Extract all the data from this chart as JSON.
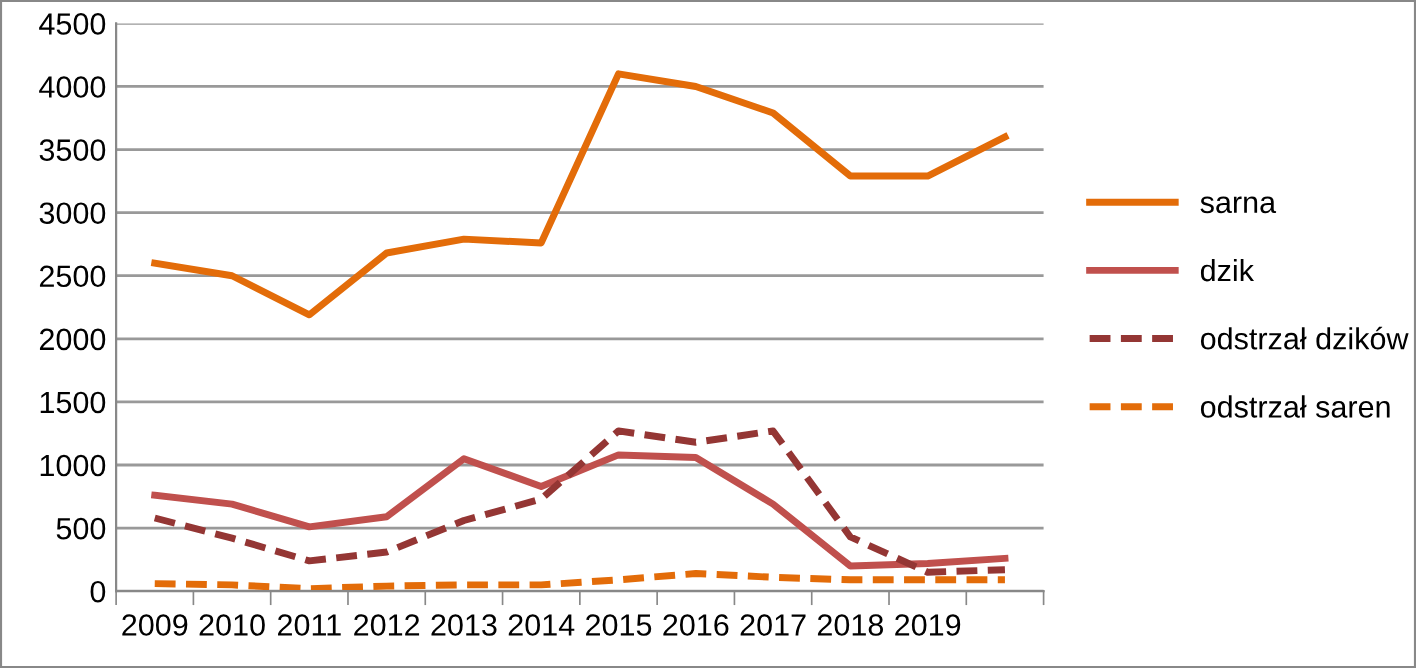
{
  "chart_data": {
    "type": "line",
    "categories": [
      "2009",
      "2010",
      "2011",
      "2012",
      "2013",
      "2014",
      "2015",
      "2016",
      "2017",
      "2018",
      "2019",
      null
    ],
    "series": [
      {
        "name": "sarna",
        "color": "#e36c09",
        "line_style": "solid",
        "values": [
          2600,
          2500,
          2190,
          2680,
          2790,
          2760,
          4100,
          4000,
          3790,
          3290,
          3290,
          3600
        ]
      },
      {
        "name": "dzik",
        "color": "#c0504d",
        "line_style": "solid",
        "values": [
          760,
          690,
          510,
          590,
          1050,
          830,
          1080,
          1060,
          690,
          200,
          220,
          260
        ]
      },
      {
        "name": "odstrzał dzików",
        "color": "#943634",
        "line_style": "dashed",
        "values": [
          580,
          420,
          240,
          310,
          560,
          730,
          1270,
          1180,
          1270,
          430,
          150,
          170
        ]
      },
      {
        "name": "odstrzał saren",
        "color": "#e36c09",
        "line_style": "dashed",
        "values": [
          60,
          50,
          20,
          40,
          50,
          50,
          90,
          140,
          110,
          90,
          90,
          90
        ]
      }
    ],
    "ylim": [
      0,
      4500
    ],
    "yticks": [
      0,
      500,
      1000,
      1500,
      2000,
      2500,
      3000,
      3500,
      4000,
      4500
    ],
    "grid": "y",
    "legend": "right",
    "marker": "none"
  }
}
